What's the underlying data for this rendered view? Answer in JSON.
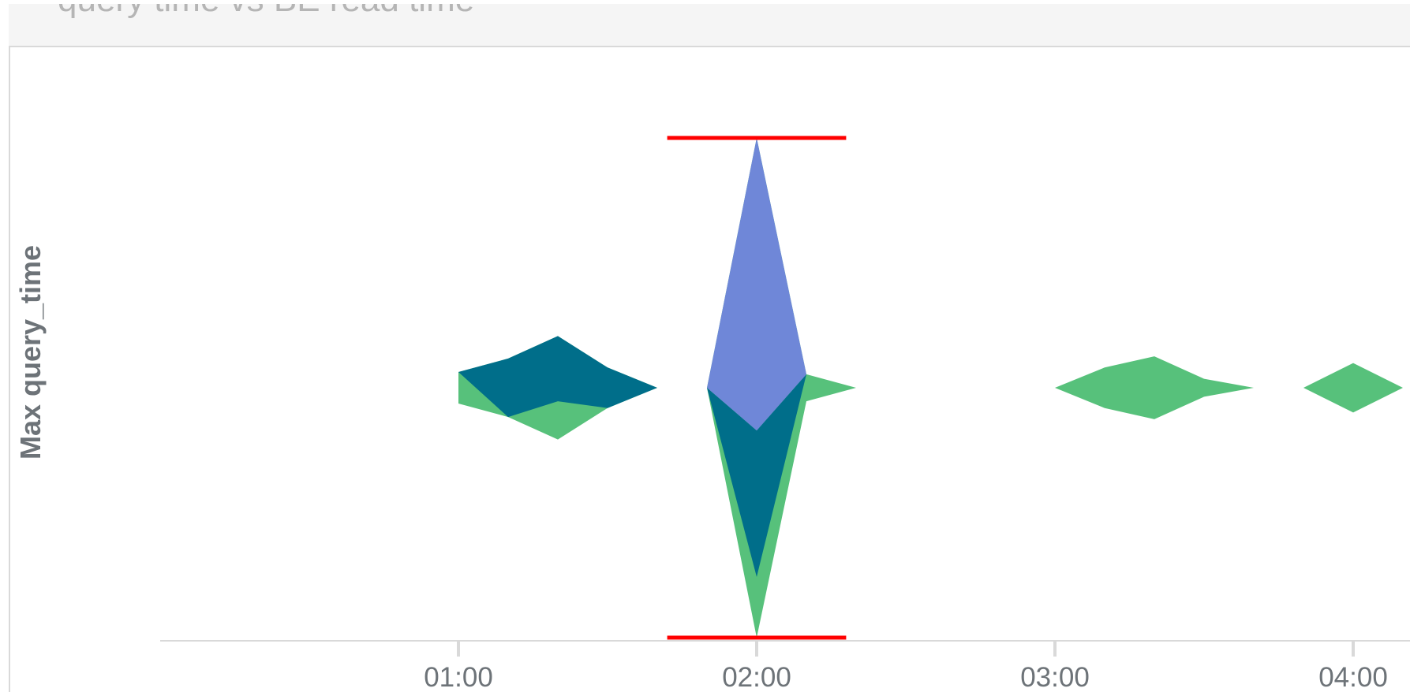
{
  "panel": {
    "title": "query time vs BE read time"
  },
  "chart_data": {
    "type": "area",
    "title": "",
    "ylabel": "Max query_time",
    "xlabel": "",
    "x_ticks": [
      "01:00",
      "02:00",
      "03:00",
      "04:00"
    ],
    "x_range": [
      0.0,
      4.2
    ],
    "y_range": [
      -1,
      1
    ],
    "grid": false,
    "legend": "none",
    "colors": {
      "green": "#57c17b",
      "teal": "#006e8a",
      "blue": "#6f87d8",
      "annotation": "#ff0000",
      "axis": "#d9d9d9"
    },
    "series": [
      {
        "color": "#57c17b",
        "segments": [
          {
            "x": [
              1.0,
              1.1667,
              1.3333,
              1.5,
              1.6667
            ],
            "upper": [
              0.063,
              0.117,
              0.207,
              0.081,
              0.0
            ],
            "lower": [
              -0.063,
              -0.117,
              -0.207,
              -0.081,
              0.0
            ]
          },
          {
            "x": [
              1.8333,
              2.0,
              2.1667,
              2.3333
            ],
            "upper": [
              0.0,
              1.0,
              0.054,
              0.0
            ],
            "lower": [
              0.0,
              -1.0,
              -0.054,
              0.0
            ]
          },
          {
            "x": [
              3.0,
              3.1667,
              3.3333,
              3.5,
              3.6667
            ],
            "upper": [
              0.0,
              0.081,
              0.126,
              0.036,
              0.0
            ],
            "lower": [
              0.0,
              -0.081,
              -0.126,
              -0.036,
              0.0
            ]
          },
          {
            "x": [
              3.8333,
              4.0,
              4.1667
            ],
            "upper": [
              0.0,
              0.099,
              0.0
            ],
            "lower": [
              0.0,
              -0.099,
              0.0
            ]
          }
        ]
      },
      {
        "color": "#006e8a",
        "segments": [
          {
            "x": [
              1.0,
              1.1667,
              1.3333,
              1.5,
              1.6667
            ],
            "upper": [
              0.063,
              0.117,
              0.207,
              0.081,
              0.0
            ],
            "lower": [
              0.063,
              -0.117,
              -0.054,
              -0.081,
              0.0
            ]
          },
          {
            "x": [
              1.8333,
              2.0,
              2.1667
            ],
            "upper": [
              0.0,
              -0.171,
              0.054
            ],
            "lower": [
              0.0,
              -0.757,
              0.054
            ]
          }
        ]
      },
      {
        "color": "#6f87d8",
        "segments": [
          {
            "x": [
              1.8333,
              2.0,
              2.1667
            ],
            "upper": [
              0.0,
              1.0,
              0.054
            ],
            "lower": [
              0.0,
              -0.171,
              0.054
            ]
          }
        ]
      }
    ],
    "annotations": [
      {
        "type": "hline",
        "y": 1.0,
        "x_start": 1.7,
        "x_end": 2.3
      },
      {
        "type": "hline",
        "y": -1.0,
        "x_start": 1.7,
        "x_end": 2.3
      }
    ]
  }
}
